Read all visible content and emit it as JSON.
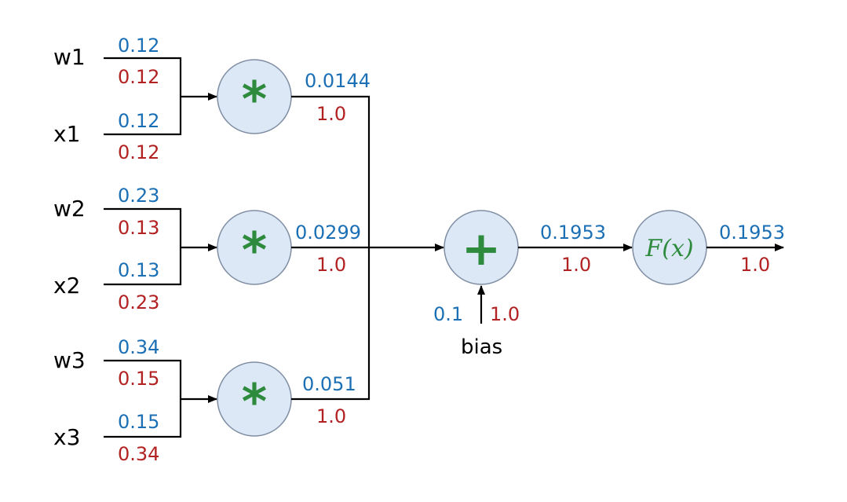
{
  "inputs": [
    {
      "label": "w1",
      "value": "0.12",
      "grad": "0.12"
    },
    {
      "label": "x1",
      "value": "0.12",
      "grad": "0.12"
    },
    {
      "label": "w2",
      "value": "0.23",
      "grad": "0.13"
    },
    {
      "label": "x2",
      "value": "0.13",
      "grad": "0.23"
    },
    {
      "label": "w3",
      "value": "0.34",
      "grad": "0.15"
    },
    {
      "label": "x3",
      "value": "0.15",
      "grad": "0.34"
    }
  ],
  "multiply_nodes": [
    {
      "symbol": "*",
      "value": "0.0144",
      "grad": "1.0"
    },
    {
      "symbol": "*",
      "value": "0.0299",
      "grad": "1.0"
    },
    {
      "symbol": "*",
      "value": "0.051",
      "grad": "1.0"
    }
  ],
  "add_node": {
    "symbol": "+",
    "value": "0.1953",
    "grad": "1.0"
  },
  "bias": {
    "label": "bias",
    "value": "0.1",
    "grad": "1.0"
  },
  "activation_node": {
    "symbol": "F(x)",
    "value": "0.1953",
    "grad": "1.0"
  },
  "colors": {
    "value": "#1a6fb5",
    "gradient": "#b22222",
    "node_fill": "#dce8f5",
    "operator": "#2e8b3e"
  }
}
